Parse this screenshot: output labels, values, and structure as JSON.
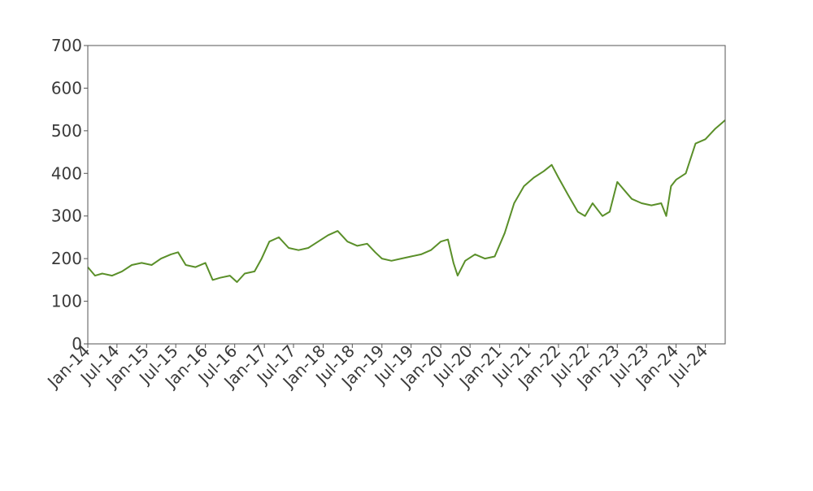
{
  "chart_data": {
    "type": "line",
    "title": "",
    "xlabel": "",
    "ylabel": "",
    "ylim": [
      0,
      700
    ],
    "xlim": [
      "2014-01-01",
      "2024-11-01"
    ],
    "yticks": [
      "0",
      "100",
      "200",
      "300",
      "400",
      "500",
      "600",
      "700"
    ],
    "xtick_dates": [
      "2014-01-01",
      "2014-07-01",
      "2015-01-01",
      "2015-07-01",
      "2016-01-01",
      "2016-07-01",
      "2017-01-01",
      "2017-07-01",
      "2018-01-01",
      "2018-07-01",
      "2019-01-01",
      "2019-07-01",
      "2020-01-01",
      "2020-07-01",
      "2021-01-01",
      "2021-07-01",
      "2022-01-01",
      "2022-07-01",
      "2023-01-01",
      "2023-07-01",
      "2024-01-01",
      "2024-07-01"
    ],
    "xtick_labels": [
      "Jan-14",
      "Jul-14",
      "Jan-15",
      "Jul-15",
      "Jan-16",
      "Jul-16",
      "Jan-17",
      "Jul-17",
      "Jan-18",
      "Jul-18",
      "Jan-19",
      "Jul-19",
      "Jan-20",
      "Jul-20",
      "Jan-21",
      "Jul-21",
      "Jan-22",
      "Jul-22",
      "Jan-23",
      "Jul-23",
      "Jan-24",
      "Jul-24"
    ],
    "grid": false,
    "legend": "none",
    "series": [
      {
        "color": "#5a8f29",
        "x": [
          "2014-01-01",
          "2014-02-15",
          "2014-04-01",
          "2014-06-01",
          "2014-08-01",
          "2014-10-01",
          "2014-12-01",
          "2015-02-01",
          "2015-04-01",
          "2015-06-01",
          "2015-07-15",
          "2015-09-01",
          "2015-11-01",
          "2016-01-01",
          "2016-02-15",
          "2016-04-01",
          "2016-06-01",
          "2016-07-15",
          "2016-09-01",
          "2016-11-01",
          "2016-12-15",
          "2017-02-01",
          "2017-04-01",
          "2017-06-01",
          "2017-08-01",
          "2017-10-01",
          "2017-12-01",
          "2018-02-01",
          "2018-04-01",
          "2018-06-01",
          "2018-08-01",
          "2018-10-01",
          "2018-11-20",
          "2019-01-01",
          "2019-03-01",
          "2019-05-01",
          "2019-07-01",
          "2019-09-01",
          "2019-11-01",
          "2020-01-01",
          "2020-02-15",
          "2020-03-20",
          "2020-04-15",
          "2020-06-01",
          "2020-08-01",
          "2020-10-01",
          "2020-12-01",
          "2021-02-01",
          "2021-04-01",
          "2021-06-01",
          "2021-08-01",
          "2021-10-01",
          "2021-11-20",
          "2022-01-01",
          "2022-03-01",
          "2022-05-01",
          "2022-06-15",
          "2022-08-01",
          "2022-10-01",
          "2022-11-15",
          "2023-01-01",
          "2023-02-15",
          "2023-04-01",
          "2023-06-01",
          "2023-08-01",
          "2023-10-01",
          "2023-11-01",
          "2023-12-01",
          "2024-01-01",
          "2024-03-01",
          "2024-05-01",
          "2024-07-01",
          "2024-09-01",
          "2024-11-01"
        ],
        "y": [
          180,
          160,
          165,
          160,
          170,
          185,
          190,
          185,
          200,
          210,
          215,
          185,
          180,
          190,
          150,
          155,
          160,
          145,
          165,
          170,
          200,
          240,
          250,
          225,
          220,
          225,
          240,
          255,
          265,
          240,
          230,
          235,
          215,
          200,
          195,
          200,
          205,
          210,
          220,
          240,
          245,
          190,
          160,
          195,
          210,
          200,
          205,
          260,
          330,
          370,
          390,
          405,
          420,
          390,
          350,
          310,
          300,
          330,
          300,
          310,
          380,
          360,
          340,
          330,
          325,
          330,
          300,
          370,
          385,
          400,
          470,
          480,
          505,
          525
        ]
      }
    ]
  }
}
